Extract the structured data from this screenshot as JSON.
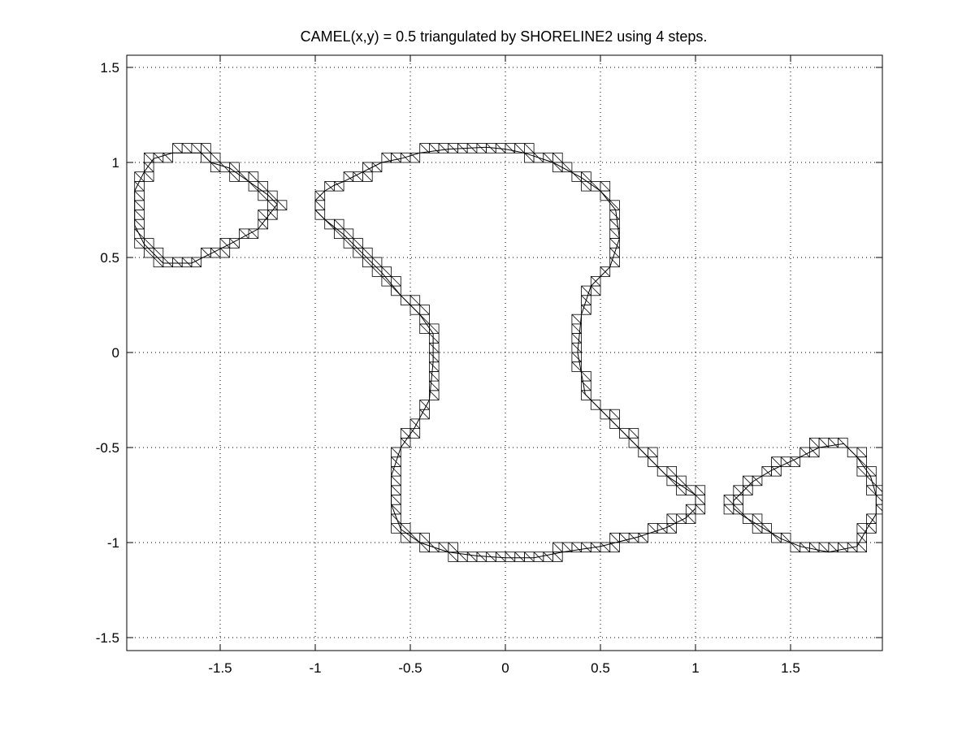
{
  "chart_data": {
    "type": "line",
    "title": "CAMEL(x,y) = 0.5 triangulated by SHORELINE2 using 4 steps.",
    "xlabel": "",
    "ylabel": "",
    "xlim": [
      -1.95,
      1.95
    ],
    "ylim": [
      -1.56,
      1.56
    ],
    "grid": true,
    "grid_style": "dotted",
    "mesh_style": "staircase triangulated band (cell size 0.05)",
    "xticks": [
      -1.5,
      -1,
      -0.5,
      0,
      0.5,
      1,
      1.5
    ],
    "xtick_labels": [
      "-1.5",
      "-1",
      "-0.5",
      "0",
      "0.5",
      "1",
      "1.5"
    ],
    "yticks": [
      1.5,
      1,
      0.5,
      0,
      -0.5,
      -1,
      -1.5
    ],
    "ytick_labels": [
      "1.5",
      "1",
      "0.5",
      "0",
      "-0.5",
      "-1",
      "-1.5"
    ],
    "series": [
      {
        "color": "#000000",
        "values": [
          [
            -1.95,
            0.85
          ],
          [
            -1.9,
            0.95
          ],
          [
            -1.85,
            1.02
          ],
          [
            -1.75,
            1.05
          ],
          [
            -1.6,
            1.05
          ],
          [
            -1.55,
            1.0
          ],
          [
            -1.45,
            0.97
          ],
          [
            -1.35,
            0.9
          ],
          [
            -1.25,
            0.83
          ],
          [
            -1.2,
            0.78
          ],
          [
            -1.3,
            0.65
          ],
          [
            -1.45,
            0.57
          ],
          [
            -1.55,
            0.52
          ],
          [
            -1.65,
            0.47
          ],
          [
            -1.8,
            0.47
          ],
          [
            -1.9,
            0.57
          ],
          [
            -1.95,
            0.67
          ],
          [
            -1.95,
            0.85
          ]
        ]
      },
      {
        "values": [
          [
            -1.0,
            0.8
          ],
          [
            -0.95,
            0.85
          ],
          [
            -0.9,
            0.88
          ],
          [
            -0.85,
            0.9
          ],
          [
            -0.75,
            0.95
          ],
          [
            -0.65,
            1.0
          ],
          [
            -0.55,
            1.02
          ],
          [
            -0.45,
            1.05
          ],
          [
            -0.3,
            1.07
          ],
          [
            -0.1,
            1.08
          ],
          [
            0.0,
            1.07
          ],
          [
            0.1,
            1.05
          ],
          [
            0.25,
            1.0
          ],
          [
            0.4,
            0.92
          ],
          [
            0.5,
            0.85
          ],
          [
            0.58,
            0.75
          ],
          [
            0.6,
            0.6
          ],
          [
            0.55,
            0.45
          ],
          [
            0.45,
            0.35
          ],
          [
            0.4,
            0.2
          ],
          [
            0.38,
            0.0
          ],
          [
            0.42,
            -0.22
          ],
          [
            0.55,
            -0.35
          ],
          [
            0.7,
            -0.5
          ],
          [
            0.85,
            -0.65
          ],
          [
            1.0,
            -0.75
          ],
          [
            1.0,
            -0.82
          ],
          [
            0.95,
            -0.87
          ],
          [
            0.85,
            -0.92
          ],
          [
            0.7,
            -0.97
          ],
          [
            0.5,
            -1.02
          ],
          [
            0.3,
            -1.05
          ],
          [
            0.15,
            -1.08
          ],
          [
            0.0,
            -1.08
          ],
          [
            -0.15,
            -1.07
          ],
          [
            -0.3,
            -1.05
          ],
          [
            -0.45,
            -1.0
          ],
          [
            -0.55,
            -0.93
          ],
          [
            -0.6,
            -0.8
          ],
          [
            -0.6,
            -0.65
          ],
          [
            -0.55,
            -0.5
          ],
          [
            -0.48,
            -0.4
          ],
          [
            -0.4,
            -0.25
          ],
          [
            -0.38,
            -0.05
          ],
          [
            -0.38,
            0.1
          ],
          [
            -0.45,
            0.2
          ],
          [
            -0.55,
            0.3
          ],
          [
            -0.65,
            0.42
          ],
          [
            -0.75,
            0.52
          ],
          [
            -0.85,
            0.62
          ],
          [
            -0.95,
            0.7
          ],
          [
            -1.0,
            0.75
          ],
          [
            -1.0,
            0.8
          ]
        ]
      },
      {
        "values": [
          [
            1.2,
            -0.78
          ],
          [
            1.3,
            -0.68
          ],
          [
            1.4,
            -0.62
          ],
          [
            1.55,
            -0.55
          ],
          [
            1.65,
            -0.5
          ],
          [
            1.78,
            -0.48
          ],
          [
            1.85,
            -0.55
          ],
          [
            1.92,
            -0.65
          ],
          [
            1.95,
            -0.75
          ],
          [
            1.95,
            -0.85
          ],
          [
            1.9,
            -0.93
          ],
          [
            1.85,
            -1.02
          ],
          [
            1.7,
            -1.05
          ],
          [
            1.55,
            -1.02
          ],
          [
            1.45,
            -0.98
          ],
          [
            1.35,
            -0.92
          ],
          [
            1.25,
            -0.86
          ],
          [
            1.2,
            -0.82
          ],
          [
            1.2,
            -0.78
          ]
        ]
      }
    ]
  }
}
